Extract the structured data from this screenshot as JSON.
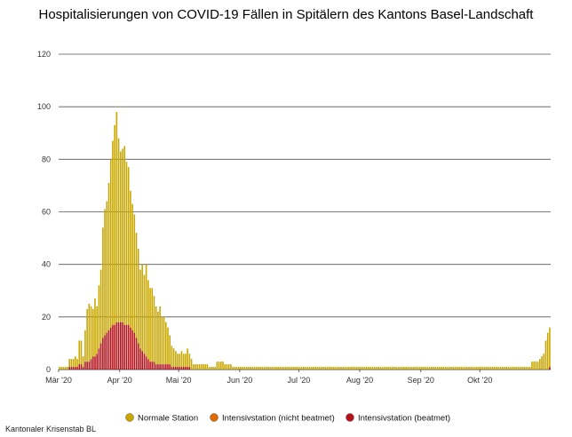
{
  "chart_data": {
    "type": "bar",
    "stacked": true,
    "title": "Hospitalisierungen von COVID-19 Fällen in Spitälern des Kantons Basel-Landschaft",
    "source": "Kantonaler Krisenstab BL",
    "ylim": [
      0,
      120
    ],
    "yticks": [
      0,
      20,
      40,
      60,
      80,
      100,
      120
    ],
    "grid": true,
    "legend_position": "bottom",
    "x_start": "2020-03-01",
    "xticks": [
      {
        "label": "Mär '20",
        "date": "2020-03-01"
      },
      {
        "label": "Apr '20",
        "date": "2020-04-01"
      },
      {
        "label": "Mai '20",
        "date": "2020-05-01"
      },
      {
        "label": "Jun '20",
        "date": "2020-06-01"
      },
      {
        "label": "Jul '20",
        "date": "2020-07-01"
      },
      {
        "label": "Aug '20",
        "date": "2020-08-01"
      },
      {
        "label": "Sep '20",
        "date": "2020-09-01"
      },
      {
        "label": "Okt '20",
        "date": "2020-10-01"
      }
    ],
    "series": [
      {
        "name": "Normale Station",
        "color": "#c8a800",
        "values": [
          1,
          1,
          1,
          1,
          1,
          3,
          3,
          3,
          4,
          3,
          9,
          9,
          4,
          12,
          20,
          22,
          20,
          18,
          22,
          18,
          24,
          28,
          42,
          48,
          50,
          56,
          64,
          70,
          76,
          80,
          70,
          65,
          66,
          68,
          62,
          60,
          52,
          48,
          45,
          40,
          36,
          30,
          33,
          30,
          35,
          30,
          28,
          28,
          25,
          22,
          20,
          22,
          18,
          18,
          16,
          14,
          11,
          8,
          7,
          6,
          5,
          5,
          6,
          5,
          5,
          7,
          5,
          4,
          2,
          2,
          2,
          2,
          2,
          2,
          2,
          2,
          1,
          1,
          1,
          1,
          3,
          3,
          3,
          3,
          2,
          2,
          2,
          2,
          1,
          1,
          1,
          1,
          1,
          1,
          1,
          1,
          1,
          1,
          1,
          1,
          1,
          1,
          1,
          1,
          1,
          1,
          1,
          1,
          1,
          1,
          1,
          1,
          1,
          1,
          1,
          1,
          1,
          1,
          1,
          1,
          1,
          1,
          1,
          1,
          1,
          1,
          1,
          1,
          1,
          1,
          1,
          1,
          1,
          1,
          1,
          1,
          1,
          1,
          1,
          1,
          1,
          1,
          1,
          1,
          1,
          1,
          1,
          1,
          1,
          1,
          1,
          1,
          1,
          1,
          1,
          1,
          1,
          1,
          1,
          1,
          1,
          1,
          1,
          1,
          1,
          1,
          1,
          1,
          1,
          1,
          1,
          1,
          1,
          1,
          1,
          1,
          1,
          1,
          1,
          1,
          1,
          1,
          1,
          1,
          1,
          1,
          1,
          1,
          1,
          1,
          1,
          1,
          1,
          1,
          1,
          1,
          1,
          1,
          1,
          1,
          1,
          1,
          1,
          1,
          1,
          1,
          1,
          1,
          1,
          1,
          1,
          1,
          1,
          1,
          1,
          1,
          1,
          1,
          1,
          1,
          1,
          1,
          1,
          1,
          1,
          1,
          1,
          1,
          1,
          1,
          1,
          1,
          1,
          1,
          1,
          1,
          1,
          1,
          1,
          1,
          3,
          3,
          3,
          3,
          4,
          5,
          6,
          11,
          14,
          15
        ]
      },
      {
        "name": "Intensivstation (nicht beatmet)",
        "color": "#e06c00",
        "values": [
          0,
          0,
          0,
          0,
          0,
          0,
          0,
          0,
          0,
          0,
          0,
          0,
          0,
          0,
          0,
          0,
          0,
          0,
          0,
          0,
          0,
          0,
          0,
          0,
          0,
          0,
          0,
          0,
          0,
          0,
          0,
          0,
          0,
          0,
          0,
          0,
          0,
          0,
          0,
          0,
          0,
          0,
          0,
          0,
          0,
          0,
          0,
          0,
          0,
          0,
          0,
          0,
          0,
          0,
          0,
          0,
          0,
          0,
          0,
          0,
          0,
          0,
          0,
          0,
          0,
          0,
          0,
          0,
          0,
          0,
          0,
          0,
          0,
          0,
          0,
          0,
          0,
          0,
          0,
          0,
          0,
          0,
          0,
          0,
          0,
          0,
          0,
          0,
          0,
          0,
          0,
          0,
          0,
          0,
          0,
          0,
          0,
          0,
          0,
          0,
          0,
          0,
          0,
          0,
          0,
          0,
          0,
          0,
          0,
          0,
          0,
          0,
          0,
          0,
          0,
          0,
          0,
          0,
          0,
          0,
          0,
          0,
          0,
          0,
          0,
          0,
          0,
          0,
          0,
          0,
          0,
          0,
          0,
          0,
          0,
          0,
          0,
          0,
          0,
          0,
          0,
          0,
          0,
          0,
          0,
          0,
          0,
          0,
          0,
          0,
          0,
          0,
          0,
          0,
          0,
          0,
          0,
          0,
          0,
          0,
          0,
          0,
          0,
          0,
          0,
          0,
          0,
          0,
          0,
          0,
          0,
          0,
          0,
          0,
          0,
          0,
          0,
          0,
          0,
          0,
          0,
          0,
          0,
          0,
          0,
          0,
          0,
          0,
          0,
          0,
          0,
          0,
          0,
          0,
          0,
          0,
          0,
          0,
          0,
          0,
          0,
          0,
          0,
          0,
          0,
          0,
          0,
          0,
          0,
          0,
          0,
          0,
          0,
          0,
          0,
          0,
          0,
          0,
          0,
          0,
          0,
          0,
          0,
          0,
          0,
          0,
          0,
          0,
          0,
          0,
          0,
          0,
          0,
          0,
          0,
          0,
          0,
          0,
          0,
          0,
          0,
          0,
          0,
          0,
          0,
          0,
          0,
          0,
          0,
          0,
          0,
          0,
          0,
          0
        ]
      },
      {
        "name": "Intensivstation (beatmet)",
        "color": "#b3121b",
        "values": [
          0,
          0,
          0,
          0,
          0,
          1,
          1,
          1,
          1,
          1,
          2,
          2,
          1,
          3,
          3,
          3,
          4,
          5,
          5,
          6,
          8,
          10,
          12,
          13,
          14,
          15,
          16,
          17,
          17,
          18,
          18,
          18,
          18,
          17,
          17,
          17,
          16,
          15,
          14,
          12,
          10,
          8,
          7,
          6,
          5,
          4,
          3,
          3,
          3,
          2,
          2,
          2,
          2,
          2,
          2,
          2,
          2,
          1,
          1,
          1,
          1,
          1,
          1,
          1,
          1,
          1,
          1,
          0,
          0,
          0,
          0,
          0,
          0,
          0,
          0,
          0,
          0,
          0,
          0,
          0,
          0,
          0,
          0,
          0,
          0,
          0,
          0,
          0,
          0,
          0,
          0,
          0,
          0,
          0,
          0,
          0,
          0,
          0,
          0,
          0,
          0,
          0,
          0,
          0,
          0,
          0,
          0,
          0,
          0,
          0,
          0,
          0,
          0,
          0,
          0,
          0,
          0,
          0,
          0,
          0,
          0,
          0,
          0,
          0,
          0,
          0,
          0,
          0,
          0,
          0,
          0,
          0,
          0,
          0,
          0,
          0,
          0,
          0,
          0,
          0,
          0,
          0,
          0,
          0,
          0,
          0,
          0,
          0,
          0,
          0,
          0,
          0,
          0,
          0,
          0,
          0,
          0,
          0,
          0,
          0,
          0,
          0,
          0,
          0,
          0,
          0,
          0,
          0,
          0,
          0,
          0,
          0,
          0,
          0,
          0,
          0,
          0,
          0,
          0,
          0,
          0,
          0,
          0,
          0,
          0,
          0,
          0,
          0,
          0,
          0,
          0,
          0,
          0,
          0,
          0,
          0,
          0,
          0,
          0,
          0,
          0,
          0,
          0,
          0,
          0,
          0,
          0,
          0,
          0,
          0,
          0,
          0,
          0,
          0,
          0,
          0,
          0,
          0,
          0,
          0,
          0,
          0,
          0,
          0,
          0,
          0,
          0,
          0,
          0,
          0,
          0,
          0,
          0,
          0,
          0,
          0,
          0,
          0,
          0,
          0,
          0,
          0,
          0,
          0,
          0,
          0,
          0,
          0,
          0,
          1,
          1,
          1,
          1,
          2,
          2,
          3,
          4
        ]
      }
    ]
  }
}
